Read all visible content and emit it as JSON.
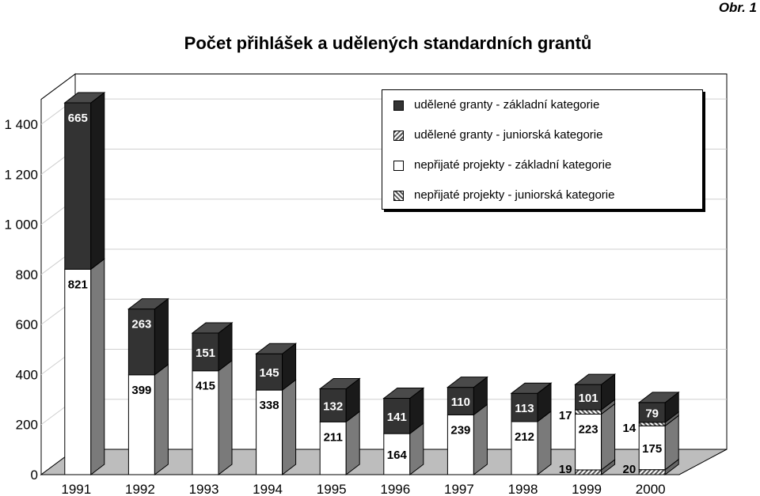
{
  "figure_label": "Obr. 1",
  "chart_data": {
    "type": "bar",
    "stacked": true,
    "title": "Počet přihlášek a udělených standardních grantů",
    "categories": [
      "1991",
      "1992",
      "1993",
      "1994",
      "1995",
      "1996",
      "1997",
      "1998",
      "1999",
      "2000"
    ],
    "y_ticks": [
      0,
      200,
      400,
      600,
      800,
      1000,
      1200,
      1400
    ],
    "y_tick_labels": [
      "0",
      "200",
      "400",
      "600",
      "800",
      "1 000",
      "1 200",
      "1 400"
    ],
    "ylim": [
      0,
      1500
    ],
    "grid": true,
    "legend_position": "top-right",
    "series": [
      {
        "name": "nepřijaté projekty - juniorská kategorie",
        "color": "#555555",
        "pattern": "hatch-45",
        "values": [
          null,
          null,
          null,
          null,
          null,
          null,
          null,
          null,
          19,
          20
        ]
      },
      {
        "name": "nepřijaté projekty - základní kategorie",
        "color": "#ffffff",
        "values": [
          821,
          399,
          415,
          338,
          211,
          164,
          239,
          212,
          223,
          175
        ]
      },
      {
        "name": "udělené granty - juniorská kategorie",
        "color": "#555555",
        "pattern": "hatch-135",
        "values": [
          null,
          null,
          null,
          null,
          null,
          null,
          null,
          null,
          17,
          14
        ]
      },
      {
        "name": "udělené granty - základní kategorie",
        "color": "#333333",
        "values": [
          665,
          263,
          151,
          145,
          132,
          141,
          110,
          113,
          101,
          79
        ]
      }
    ],
    "legend_order": [
      3,
      2,
      1,
      0
    ]
  }
}
